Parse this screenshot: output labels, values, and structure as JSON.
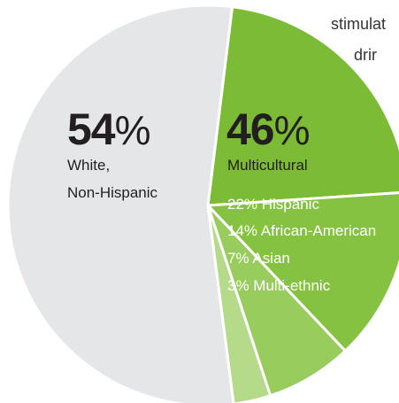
{
  "cropped_text": [
    "stimulat",
    "drir"
  ],
  "chart_data": {
    "type": "pie",
    "title": "",
    "slices": [
      {
        "name": "White, Non-Hispanic",
        "value": 54,
        "color": "#e5e6e7"
      },
      {
        "name": "Hispanic",
        "value": 22,
        "color": "#7cbb35"
      },
      {
        "name": "African-American",
        "value": 14,
        "color": "#86c242"
      },
      {
        "name": "Asian",
        "value": 7,
        "color": "#98cc5d"
      },
      {
        "name": "Multi-ethnic",
        "value": 3,
        "color": "#b4da8a"
      }
    ],
    "labels": {
      "white": {
        "percent": "54",
        "percent_symbol": "%",
        "line1": "White,",
        "line2": "Non-Hispanic"
      },
      "multicultural": {
        "percent": "46",
        "percent_symbol": "%",
        "title": "Multicultural",
        "breakdown": [
          "22% Hispanic",
          "14% African-American",
          "7% Asian",
          "3% Multi-ethnic"
        ]
      }
    },
    "slice_separator_color": "#ffffff",
    "text_color_dark": "#231f20",
    "text_color_light": "#ffffff"
  }
}
